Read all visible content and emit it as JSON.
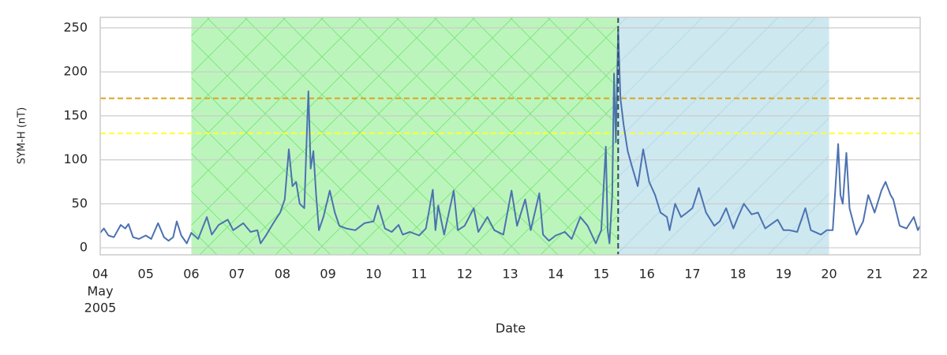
{
  "chart_data": {
    "type": "line",
    "ylabel": "SYM-H (nT)",
    "xlabel": "Date",
    "color": "#4c72b0",
    "x": [
      4.0,
      4.08,
      4.18,
      4.3,
      4.45,
      4.55,
      4.62,
      4.72,
      4.85,
      5.0,
      5.12,
      5.27,
      5.4,
      5.5,
      5.6,
      5.68,
      5.78,
      5.9,
      6.0,
      6.15,
      6.34,
      6.45,
      6.6,
      6.8,
      6.92,
      7.14,
      7.3,
      7.45,
      7.52,
      7.65,
      7.8,
      7.95,
      8.05,
      8.14,
      8.22,
      8.3,
      8.38,
      8.48,
      8.55,
      8.57,
      8.62,
      8.68,
      8.74,
      8.8,
      8.9,
      9.04,
      9.15,
      9.25,
      9.4,
      9.6,
      9.8,
      10.0,
      10.1,
      10.25,
      10.4,
      10.55,
      10.64,
      10.8,
      11.0,
      11.15,
      11.3,
      11.36,
      11.42,
      11.55,
      11.76,
      11.85,
      12.0,
      12.2,
      12.3,
      12.5,
      12.65,
      12.85,
      13.03,
      13.15,
      13.33,
      13.45,
      13.64,
      13.72,
      13.85,
      14.0,
      14.2,
      14.35,
      14.54,
      14.7,
      14.88,
      15.0,
      15.1,
      15.14,
      15.18,
      15.24,
      15.28,
      15.32,
      15.37,
      15.42,
      15.49,
      15.58,
      15.66,
      15.8,
      15.92,
      16.05,
      16.18,
      16.3,
      16.44,
      16.5,
      16.62,
      16.75,
      16.88,
      17.0,
      17.14,
      17.3,
      17.48,
      17.6,
      17.74,
      17.9,
      18.0,
      18.13,
      18.3,
      18.44,
      18.6,
      18.87,
      19.0,
      19.13,
      19.3,
      19.48,
      19.6,
      19.82,
      19.95,
      20.08,
      20.2,
      20.25,
      20.3,
      20.38,
      20.45,
      20.6,
      20.75,
      20.86,
      21.0,
      21.15,
      21.24,
      21.35,
      21.41,
      21.55,
      21.7,
      21.86,
      21.95,
      22.0
    ],
    "values": [
      17,
      22,
      14,
      12,
      26,
      22,
      27,
      12,
      10,
      14,
      10,
      28,
      12,
      8,
      12,
      30,
      14,
      5,
      17,
      10,
      35,
      15,
      26,
      32,
      20,
      28,
      18,
      20,
      5,
      15,
      28,
      40,
      55,
      112,
      70,
      75,
      50,
      45,
      150,
      178,
      90,
      110,
      60,
      20,
      35,
      65,
      40,
      25,
      22,
      20,
      28,
      30,
      48,
      22,
      18,
      26,
      15,
      18,
      14,
      22,
      66,
      20,
      48,
      15,
      65,
      20,
      25,
      45,
      18,
      35,
      20,
      15,
      65,
      25,
      55,
      20,
      62,
      15,
      8,
      14,
      18,
      10,
      35,
      25,
      5,
      20,
      115,
      20,
      5,
      60,
      198,
      120,
      248,
      170,
      140,
      110,
      95,
      70,
      112,
      75,
      60,
      40,
      35,
      20,
      50,
      35,
      40,
      45,
      68,
      40,
      25,
      30,
      45,
      22,
      35,
      50,
      38,
      40,
      22,
      32,
      20,
      20,
      18,
      45,
      20,
      15,
      20,
      20,
      118,
      60,
      50,
      108,
      45,
      15,
      30,
      60,
      40,
      65,
      75,
      60,
      55,
      25,
      22,
      35,
      20,
      25
    ],
    "xlim": [
      4,
      22
    ],
    "xticks": [
      {
        "value": 4,
        "label": "04"
      },
      {
        "value": 5,
        "label": "05"
      },
      {
        "value": 6,
        "label": "06"
      },
      {
        "value": 7,
        "label": "07"
      },
      {
        "value": 8,
        "label": "08"
      },
      {
        "value": 9,
        "label": "09"
      },
      10,
      11,
      12,
      13,
      14,
      15,
      16,
      17,
      18,
      19,
      20,
      21,
      22
    ],
    "xtick_sublabels": [
      "May",
      "2005"
    ],
    "ylim": [
      -8,
      262
    ],
    "yticks": [
      0,
      50,
      100,
      150,
      200,
      250
    ],
    "grid": true,
    "spans": [
      {
        "start": 6,
        "end": 15.37,
        "color": "#90ee90",
        "hatch": "x"
      },
      {
        "start": 15.37,
        "end": 20,
        "color": "#add8e6",
        "hatch": "/"
      }
    ],
    "hlines": [
      {
        "value": 170,
        "color": "#daa520"
      },
      {
        "value": 130,
        "color": "#ffff33"
      }
    ],
    "vlines": [
      {
        "value": 15.37,
        "color": "#2f4f4f"
      }
    ]
  }
}
